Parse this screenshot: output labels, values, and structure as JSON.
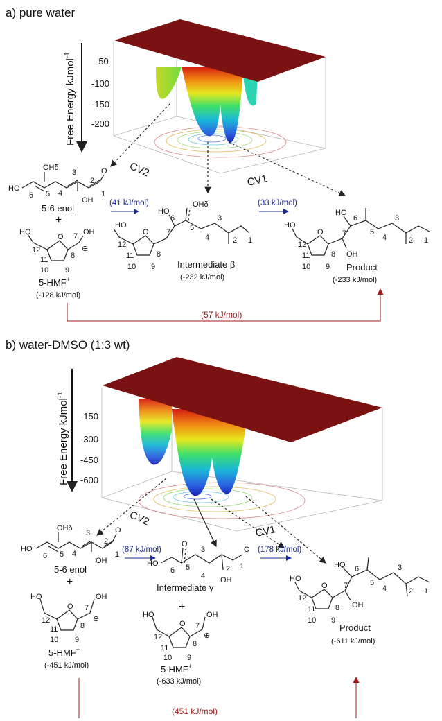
{
  "panel_a": {
    "title": "a) pure water",
    "zlabel": "Free Energy kJmol",
    "zlabel_sup": "-1",
    "zticks": [
      "-50",
      "-100",
      "-150",
      "-200"
    ],
    "cv1": "CV1",
    "cv2": "CV2",
    "enol_label": "5-6 enol",
    "enol_atoms": {
      "oh": "OHδ",
      "ho": "HO",
      "n1": "1",
      "n2": "2",
      "n3": "3",
      "n4": "4",
      "n5": "5",
      "n6": "6",
      "oh2": "OH"
    },
    "plus": "+",
    "hmf_label": "5-HMF",
    "hmf_sup": "+",
    "hmf_energy": "(-128 kJ/mol)",
    "hmf_atoms": {
      "ho": "HO",
      "n12": "12",
      "n7": "7",
      "oh": "OH",
      "n11": "11",
      "n8": "8",
      "n10": "10",
      "n9": "9",
      "plus": "⊕"
    },
    "step1": "(41 kJ/mol)",
    "step2": "(33 kJ/mol)",
    "inter_label": "Intermediate β",
    "inter_energy": "(-232 kJ/mol)",
    "inter_atoms": {
      "ho": "HO",
      "ho2": "HO",
      "ohd": "OHδ",
      "n12": "12",
      "n6": "6",
      "n5": "5",
      "n3": "3",
      "n7": "7",
      "n11": "11",
      "n8": "8",
      "n4": "4",
      "n2": "2",
      "n1": "1",
      "n10": "10",
      "n9": "9"
    },
    "prod_label": "Product",
    "prod_energy": "(-233 kJ/mol)",
    "prod_atoms": {
      "ho": "HO",
      "ho2": "HO",
      "n6": "6",
      "n5": "5",
      "n3": "3",
      "n12": "12",
      "n7": "7",
      "n4": "4",
      "n11": "11",
      "n8": "8",
      "n2": "2",
      "n1": "1",
      "oh": "OH",
      "n10": "10",
      "n9": "9"
    },
    "overall": "(57 kJ/mol)"
  },
  "panel_b": {
    "title": "b) water-DMSO (1:3 wt)",
    "zlabel": "Free Energy kJmol",
    "zlabel_sup": "-1",
    "zticks": [
      "-150",
      "-300",
      "-450",
      "-600"
    ],
    "cv1": "CV1",
    "cv2": "CV2",
    "enol_label": "5-6 enol",
    "enol_atoms": {
      "oh": "OHδ",
      "ho": "HO",
      "n1": "1",
      "n2": "2",
      "n3": "3",
      "n4": "4",
      "n5": "5",
      "n6": "6",
      "oh2": "OH"
    },
    "plus": "+",
    "hmf_label": "5-HMF",
    "hmf_sup": "+",
    "hmf_energy": "(-451 kJ/mol)",
    "hmf_atoms": {
      "ho": "HO",
      "oh": "OH",
      "n12": "12",
      "n7": "7",
      "n11": "11",
      "n8": "8",
      "n10": "10",
      "n9": "9",
      "plus": "⊕"
    },
    "step1": "(87 kJ/mol)",
    "step2": "(178 kJ/mol)",
    "inter_label": "Intermediate γ",
    "inter_atoms": {
      "ho": "HO",
      "n6": "6",
      "n5": "5",
      "n3": "3",
      "n4": "4",
      "n2": "2",
      "n1": "1",
      "oh": "OH"
    },
    "hmf2_label": "5-HMF",
    "hmf2_sup": "+",
    "hmf2_energy": "(-633 kJ/mol)",
    "hmf2_atoms": {
      "ho": "HO",
      "oh": "OH",
      "n12": "12",
      "n7": "7",
      "n11": "11",
      "n8": "8",
      "n10": "10",
      "n9": "9",
      "plus": "⊕"
    },
    "prod_label": "Product",
    "prod_energy": "(-611 kJ/mol)",
    "prod_atoms": {
      "ho": "HO",
      "ho2": "HO",
      "n6": "6",
      "n5": "5",
      "n3": "3",
      "n12": "12",
      "n7": "7",
      "n4": "4",
      "n11": "11",
      "n8": "8",
      "n2": "2",
      "n1": "1",
      "oh": "OH",
      "n10": "10",
      "n9": "9"
    },
    "overall": "(451 kJ/mol)"
  },
  "colors": {
    "blue": "#1a2a9c",
    "red": "#a01a1a",
    "surface_top": "#7a1212"
  }
}
